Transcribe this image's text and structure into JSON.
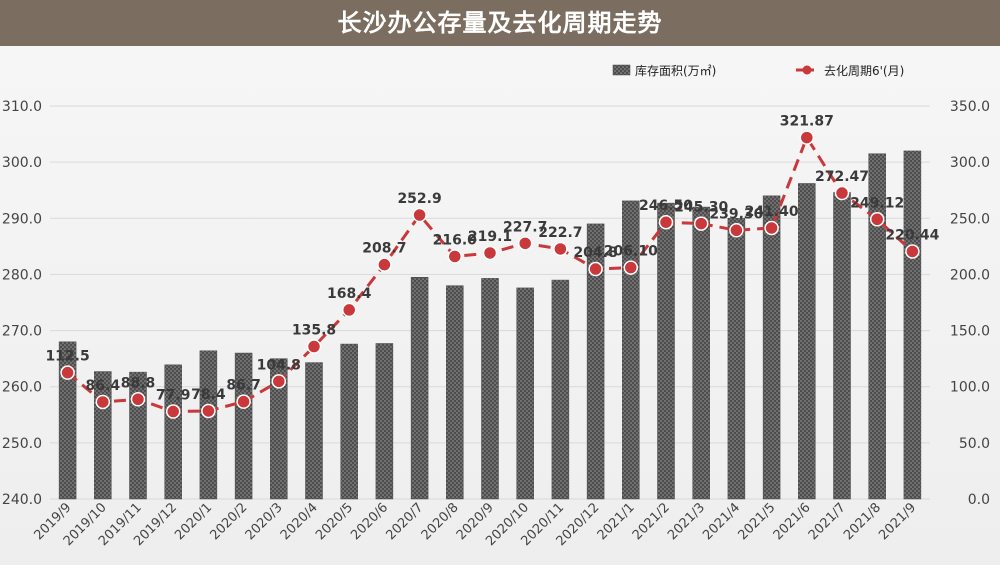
{
  "title": "长沙办公存量及去化周期走势",
  "chart_data": {
    "type": "bar",
    "title": "长沙办公存量及去化周期走势",
    "categories": [
      "2019/9",
      "2019/10",
      "2019/11",
      "2019/12",
      "2020/1",
      "2020/2",
      "2020/3",
      "2020/4",
      "2020/5",
      "2020/6",
      "2020/7",
      "2020/8",
      "2020/9",
      "2020/10",
      "2020/11",
      "2020/12",
      "2021/1",
      "2021/2",
      "2021/3",
      "2021/4",
      "2021/5",
      "2021/6",
      "2021/7",
      "2021/8",
      "2021/9"
    ],
    "series": [
      {
        "name": "库存面积(万㎡)",
        "type": "bar",
        "axis": "left",
        "values": [
          268.0,
          262.7,
          262.6,
          263.9,
          266.4,
          266.0,
          265.0,
          264.3,
          267.6,
          267.7,
          279.5,
          278.0,
          279.3,
          277.6,
          279.0,
          289.0,
          293.1,
          292.7,
          292.0,
          290.0,
          294.0,
          296.2,
          294.6,
          301.5,
          302.0
        ]
      },
      {
        "name": "去化周期6'(月)",
        "type": "line",
        "axis": "right",
        "values": [
          112.5,
          86.4,
          88.8,
          77.9,
          78.4,
          86.7,
          104.8,
          135.8,
          168.4,
          208.7,
          252.9,
          216.0,
          219.1,
          227.7,
          222.7,
          204.8,
          206.1,
          246.5,
          245.3,
          239.3,
          241.4,
          321.87,
          272.47,
          249.12,
          220.44
        ],
        "labels": [
          "112.5",
          "86.4",
          "88.8",
          "77.9",
          "78.4",
          "86.7",
          "104.8",
          "135.8",
          "168.4",
          "208.7",
          "252.9",
          "216.0",
          "219.1",
          "227.7",
          "222.7",
          "204.8",
          "206.10",
          "246.50",
          "245.30",
          "239.30",
          "241.40",
          "321.87",
          "272.47",
          "249.12",
          "220.44"
        ]
      }
    ],
    "y_left": {
      "ylim": [
        240,
        310
      ],
      "ticks": [
        "240.0",
        "250.0",
        "260.0",
        "270.0",
        "280.0",
        "290.0",
        "300.0",
        "310.0"
      ]
    },
    "y_right": {
      "ylim": [
        0,
        350
      ],
      "ticks": [
        "0.0",
        "50.0",
        "100.0",
        "150.0",
        "200.0",
        "250.0",
        "300.0",
        "350.0"
      ]
    },
    "legend_position": "top-right",
    "grid": true,
    "colors": {
      "bar": "#4a4a4a",
      "line": "#c9383a",
      "banner": "#7b6d5f"
    }
  }
}
